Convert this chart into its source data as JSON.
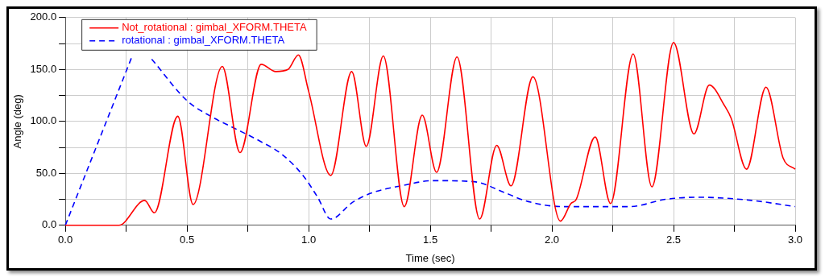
{
  "chart_data": {
    "type": "line",
    "xlabel": "Time (sec)",
    "ylabel": "Angle (deg)",
    "xlim": [
      0,
      3
    ],
    "ylim": [
      0,
      200
    ],
    "xticks": [
      {
        "value": 0,
        "label": "0.0"
      },
      {
        "value": 0.25,
        "label": null
      },
      {
        "value": 0.5,
        "label": "0.5"
      },
      {
        "value": 0.75,
        "label": null
      },
      {
        "value": 1,
        "label": "1.0"
      },
      {
        "value": 1.25,
        "label": null
      },
      {
        "value": 1.5,
        "label": "1.5"
      },
      {
        "value": 1.75,
        "label": null
      },
      {
        "value": 2,
        "label": "2.0"
      },
      {
        "value": 2.25,
        "label": null
      },
      {
        "value": 2.5,
        "label": "2.5"
      },
      {
        "value": 2.75,
        "label": null
      },
      {
        "value": 3,
        "label": "3.0"
      }
    ],
    "yticks": [
      {
        "value": 0,
        "label": "0.0"
      },
      {
        "value": 25,
        "label": null
      },
      {
        "value": 50,
        "label": "50.0"
      },
      {
        "value": 75,
        "label": null
      },
      {
        "value": 100,
        "label": "100.0"
      },
      {
        "value": 125,
        "label": null
      },
      {
        "value": 150,
        "label": "150.0"
      },
      {
        "value": 175,
        "label": null
      },
      {
        "value": 200,
        "label": "200.0"
      }
    ],
    "grid": true,
    "legend": "top left",
    "marker": "none",
    "series": [
      {
        "name": "Not_rotational : gimbal_XFORM.THETA",
        "color": "#ff0000",
        "line_style": "solid",
        "x": [
          0,
          0.22,
          0.326,
          0.366,
          0.462,
          0.525,
          0.645,
          0.718,
          0.805,
          0.865,
          0.915,
          0.958,
          1.0,
          1.091,
          1.177,
          1.237,
          1.307,
          1.393,
          1.467,
          1.526,
          1.61,
          1.703,
          1.773,
          1.832,
          1.922,
          2.035,
          2.078,
          2.1,
          2.178,
          2.241,
          2.334,
          2.411,
          2.5,
          2.584,
          2.647,
          2.71,
          2.737,
          2.8,
          2.88,
          2.95,
          3.0
        ],
        "values": [
          0,
          0,
          24,
          12,
          105,
          20,
          153,
          70,
          155,
          148,
          150,
          164,
          129,
          48,
          148,
          76,
          163,
          18,
          106,
          51,
          162,
          6,
          77,
          38,
          143,
          4,
          21,
          25,
          85,
          21,
          165,
          37,
          176,
          88,
          135,
          115,
          103,
          54,
          133,
          65,
          54
        ]
      },
      {
        "name": "rotational : gimbal_XFORM.THETA",
        "color": "#0000ff",
        "line_style": "dashed",
        "x": [
          0,
          0.273,
          0.3,
          0.355,
          0.5,
          0.605,
          0.69,
          0.8,
          0.892,
          0.98,
          1.037,
          1.091,
          1.18,
          1.257,
          1.38,
          1.513,
          1.68,
          1.81,
          1.9,
          2.045,
          2.32,
          2.467,
          2.6,
          2.82,
          3.0
        ],
        "values": [
          0,
          162,
          null,
          160,
          120,
          104,
          94,
          81,
          68,
          47,
          27,
          6,
          22,
          31,
          38,
          43,
          42,
          31,
          23,
          18,
          18,
          25,
          27,
          24,
          18
        ]
      }
    ]
  }
}
